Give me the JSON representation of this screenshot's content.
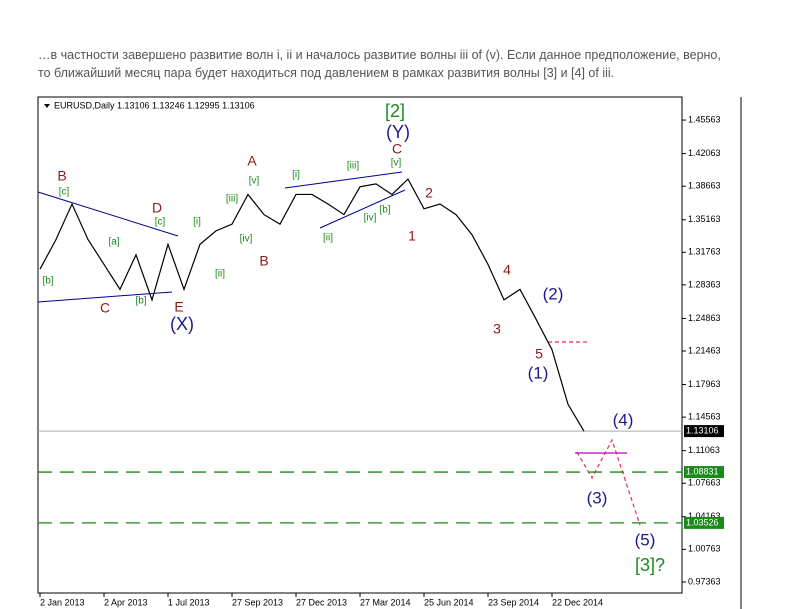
{
  "paragraph": [
    "…в частности завершено развитие волн i, ii и началось развитие волны iii of (v). Если данное предположение, верно,",
    "то ближайший месяц пара будет находиться под давлением в рамках развития волны [3] и [4] of iii."
  ],
  "chart_data": {
    "type": "line",
    "title": "EURUSD,Daily  1.13106  1.13246  1.12995  1.13106",
    "categories": [
      "2 Jan 2013",
      null,
      null,
      null,
      "2 Apr 2013",
      null,
      null,
      null,
      "1 Jul 2013",
      null,
      null,
      null,
      "27 Sep 2013",
      null,
      null,
      null,
      "27 Dec 2013",
      null,
      null,
      null,
      "27 Mar 2014",
      null,
      null,
      null,
      "25 Jun 2014",
      null,
      null,
      null,
      "23 Sep 2014",
      null,
      null,
      null,
      "22 Dec 2014",
      null,
      null
    ],
    "series": [
      {
        "name": "EURUSD",
        "color": "#000000",
        "values": [
          1.3,
          1.331,
          1.368,
          1.331,
          1.305,
          1.279,
          1.315,
          1.268,
          1.326,
          1.279,
          1.326,
          1.34,
          1.347,
          1.378,
          1.357,
          1.347,
          1.378,
          1.378,
          1.368,
          1.357,
          1.386,
          1.389,
          1.378,
          1.394,
          1.363,
          1.368,
          1.357,
          1.336,
          1.305,
          1.268,
          1.279,
          1.248,
          1.216,
          1.159,
          1.131
        ]
      }
    ],
    "ylim": [
      0.9621,
      1.4797
    ],
    "yticks": [
      1.45563,
      1.42063,
      1.38663,
      1.35163,
      1.31763,
      1.28363,
      1.24863,
      1.21463,
      1.17963,
      1.14563,
      1.11063,
      1.07663,
      1.04163,
      1.00763,
      0.97363
    ],
    "levels": [
      {
        "value": 1.13106,
        "color": "#aaaaaa",
        "style": "solid"
      },
      {
        "value": 1.08831,
        "color": "#1a8a1a",
        "style": "dashed"
      },
      {
        "value": 1.03526,
        "color": "#1a8a1a",
        "style": "dashed"
      }
    ],
    "annotations": [
      "[2]",
      "(Y)",
      "C",
      "[v]",
      "B",
      "[c]",
      "D",
      "[c]",
      "[a]",
      "[b]",
      "[b]",
      "C",
      "E",
      "(X)",
      "[i]",
      "[ii]",
      "[iii]",
      "[iv]",
      "[v]",
      "A",
      "B",
      "[i]",
      "[ii]",
      "[iii]",
      "[iv]",
      "[b]",
      "1",
      "2",
      "3",
      "4",
      "5",
      "(2)",
      "(1)",
      "(4)",
      "(3)",
      "(5)",
      "[3]?"
    ]
  }
}
